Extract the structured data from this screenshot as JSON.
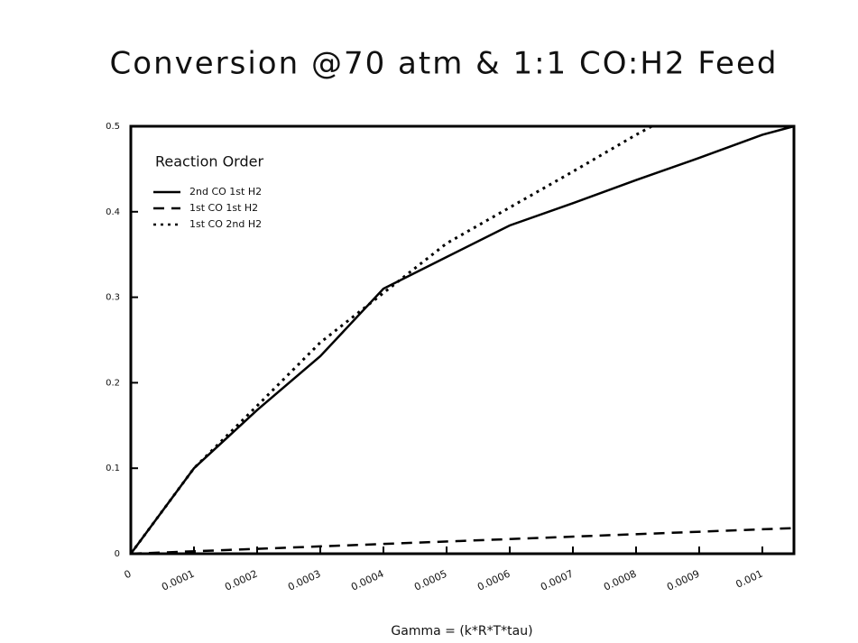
{
  "chart_data": {
    "type": "line",
    "title": "Conversion @70 atm & 1:1 CO:H2 Feed",
    "xlabel": "Gamma = (k*R*T*tau)",
    "legend_title": "Reaction Order",
    "legend": "upper left",
    "xlim": [
      0,
      0.00105
    ],
    "ylim": [
      0,
      0.5
    ],
    "xticks": [
      0,
      0.0001,
      0.0002,
      0.0003,
      0.0004,
      0.0005,
      0.0006,
      0.0007,
      0.0008,
      0.0009,
      0.001
    ],
    "yticks": [
      0,
      0.1,
      0.2,
      0.3,
      0.4,
      0.5
    ],
    "series": [
      {
        "name": "2nd CO 1st H2",
        "color": "#000000",
        "dash": "solid",
        "x": [
          0,
          0.0001,
          0.0002,
          0.0003,
          0.0004,
          0.0005,
          0.0006,
          0.0007,
          0.0008,
          0.0009,
          0.001,
          0.00105
        ],
        "values": [
          0,
          0.1,
          0.168,
          0.231,
          0.31,
          0.347,
          0.384,
          0.41,
          0.437,
          0.463,
          0.49,
          0.5
        ]
      },
      {
        "name": "1st CO 1st H2",
        "color": "#000000",
        "dash": "dashed",
        "x": [
          0,
          0.00105
        ],
        "values": [
          0,
          0.03
        ]
      },
      {
        "name": "1st CO 2nd H2",
        "color": "#000000",
        "dash": "dotted",
        "x": [
          0,
          0.0001,
          0.0002,
          0.0003,
          0.0004,
          0.0005,
          0.0006,
          0.0007,
          0.0008,
          0.000825
        ],
        "values": [
          0,
          0.1,
          0.173,
          0.247,
          0.305,
          0.363,
          0.405,
          0.447,
          0.49,
          0.5
        ]
      }
    ]
  }
}
